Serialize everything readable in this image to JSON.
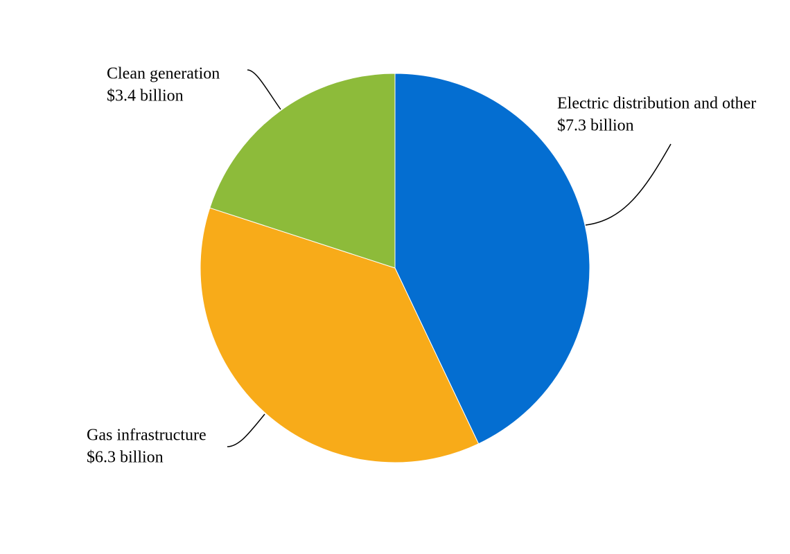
{
  "chart_data": {
    "type": "pie",
    "categories": [
      "Electric distribution and other",
      "Gas infrastructure",
      "Clean generation"
    ],
    "values": [
      7.3,
      6.3,
      3.4
    ],
    "value_labels": [
      "$7.3 billion",
      "$6.3 billion",
      "$3.4 billion"
    ],
    "colors": [
      "#046ed1",
      "#f8ab19",
      "#8dbb3a"
    ]
  }
}
